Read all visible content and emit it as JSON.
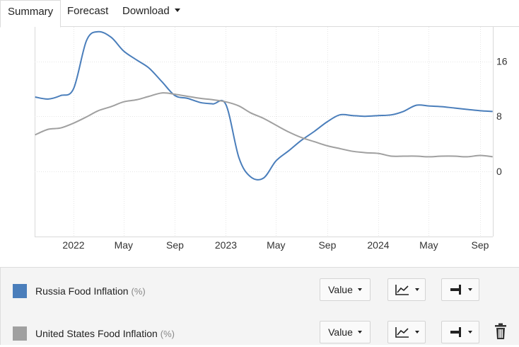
{
  "tabs": [
    {
      "label": "Summary",
      "active": true
    },
    {
      "label": "Forecast",
      "active": false
    },
    {
      "label": "Download",
      "active": false,
      "dropdown": true
    }
  ],
  "chart_data": {
    "type": "line",
    "title": "",
    "xlabel": "",
    "ylabel": "",
    "ylim": [
      -9.5,
      21
    ],
    "grid": true,
    "x_ticks": [
      "2022",
      "May",
      "Sep",
      "2023",
      "May",
      "Sep",
      "2024",
      "May",
      "Sep"
    ],
    "x_tick_dates": [
      "2022-01-01",
      "2022-05-01",
      "2022-09-01",
      "2023-01-01",
      "2023-05-01",
      "2023-09-01",
      "2024-01-01",
      "2024-05-01",
      "2024-09-01"
    ],
    "y_ticks": [
      0,
      8,
      16
    ],
    "y_axis_side": "right",
    "series": [
      {
        "name": "Russia Food Inflation",
        "color": "#4a7ebb",
        "x": [
          "2021-10",
          "2021-11",
          "2021-12",
          "2022-01",
          "2022-02",
          "2022-03",
          "2022-04",
          "2022-05",
          "2022-06",
          "2022-07",
          "2022-08",
          "2022-09",
          "2022-10",
          "2022-11",
          "2022-12",
          "2023-01",
          "2023-02",
          "2023-03",
          "2023-04",
          "2023-05",
          "2023-06",
          "2023-07",
          "2023-08",
          "2023-09",
          "2023-10",
          "2023-11",
          "2023-12",
          "2024-01",
          "2024-02",
          "2024-03",
          "2024-04",
          "2024-05",
          "2024-06",
          "2024-07",
          "2024-08",
          "2024-09",
          "2024-10"
        ],
        "values": [
          10.8,
          10.5,
          11.0,
          12.0,
          19.0,
          20.3,
          19.5,
          17.5,
          16.2,
          15.0,
          13.0,
          11.0,
          10.6,
          10.0,
          9.8,
          9.7,
          2.0,
          -0.8,
          -1.0,
          1.5,
          3.0,
          4.5,
          5.8,
          7.2,
          8.2,
          8.1,
          8.0,
          8.1,
          8.2,
          8.7,
          9.6,
          9.5,
          9.4,
          9.2,
          9.0,
          8.8,
          8.7
        ]
      },
      {
        "name": "United States Food Inflation",
        "color": "#a0a0a0",
        "x": [
          "2021-10",
          "2021-11",
          "2021-12",
          "2022-01",
          "2022-02",
          "2022-03",
          "2022-04",
          "2022-05",
          "2022-06",
          "2022-07",
          "2022-08",
          "2022-09",
          "2022-10",
          "2022-11",
          "2022-12",
          "2023-01",
          "2023-02",
          "2023-03",
          "2023-04",
          "2023-05",
          "2023-06",
          "2023-07",
          "2023-08",
          "2023-09",
          "2023-10",
          "2023-11",
          "2023-12",
          "2024-01",
          "2024-02",
          "2024-03",
          "2024-04",
          "2024-05",
          "2024-06",
          "2024-07",
          "2024-08",
          "2024-09",
          "2024-10"
        ],
        "values": [
          5.3,
          6.1,
          6.3,
          7.0,
          7.9,
          8.8,
          9.4,
          10.1,
          10.4,
          10.9,
          11.4,
          11.2,
          10.9,
          10.6,
          10.4,
          10.1,
          9.5,
          8.5,
          7.7,
          6.7,
          5.7,
          4.9,
          4.3,
          3.7,
          3.3,
          2.9,
          2.7,
          2.6,
          2.2,
          2.2,
          2.2,
          2.1,
          2.2,
          2.2,
          2.1,
          2.3,
          2.1
        ]
      }
    ]
  },
  "legend_rows": [
    {
      "name": "Russia Food Inflation",
      "unit": "(%)",
      "color": "#4a7ebb",
      "value_label": "Value",
      "line_icon": "line-chart-icon",
      "axis_icon": "axis-right-icon",
      "delete_icon": null
    },
    {
      "name": "United States Food Inflation",
      "unit": "(%)",
      "color": "#a0a0a0",
      "value_label": "Value",
      "line_icon": "line-chart-icon",
      "axis_icon": "axis-right-icon",
      "delete_icon": "trash-icon"
    }
  ]
}
